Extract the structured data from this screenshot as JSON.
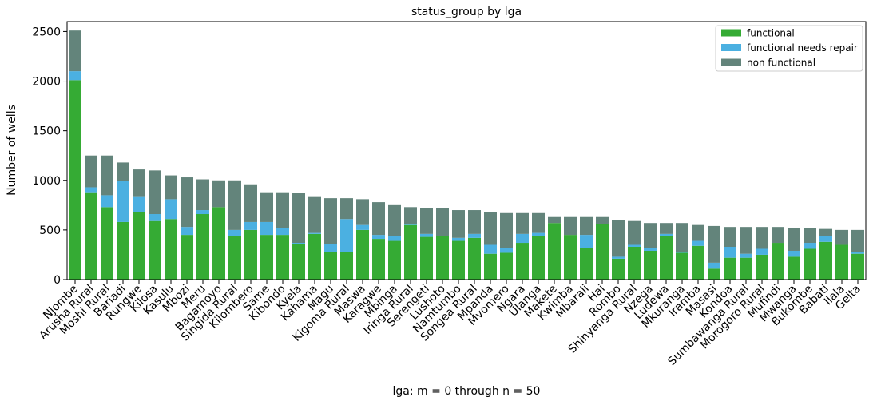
{
  "chart_data": {
    "type": "bar",
    "stacked": true,
    "title": "status_group by lga",
    "xlabel": "lga: m = 0 through n = 50",
    "ylabel": "Number of wells",
    "ylim": [
      0,
      2600
    ],
    "yticks": [
      0,
      500,
      1000,
      1500,
      2000,
      2500
    ],
    "grid": false,
    "legend_position": "top-right",
    "categories": [
      "Njombe",
      "Arusha Rural",
      "Moshi Rural",
      "Bariadi",
      "Rungwe",
      "Kilosa",
      "Kasulu",
      "Mbozi",
      "Meru",
      "Bagamoyo",
      "Singida Rural",
      "Kilombero",
      "Same",
      "Kibondo",
      "Kyela",
      "Kahama",
      "Magu",
      "Kigoma Rural",
      "Maswa",
      "Karagwe",
      "Mbinga",
      "Iringa Rural",
      "Serengeti",
      "Lushoto",
      "Namtumbo",
      "Songea Rural",
      "Mpanda",
      "Mvomero",
      "Ngara",
      "Ulanga",
      "Makete",
      "Kwimba",
      "Mbarali",
      "Hai",
      "Rombo",
      "Shinyanga Rural",
      "Nzega",
      "Ludewa",
      "Mkuranga",
      "Iramba",
      "Masasi",
      "Kondoa",
      "Sumbawanga Rural",
      "Morogoro Rural",
      "Mufindi",
      "Mwanga",
      "Bukombe",
      "Babati",
      "Ilala",
      "Geita"
    ],
    "series": [
      {
        "name": "functional",
        "color": "#35ab34",
        "values": [
          2010,
          880,
          730,
          580,
          680,
          590,
          610,
          450,
          660,
          730,
          440,
          500,
          450,
          450,
          360,
          460,
          280,
          280,
          500,
          410,
          390,
          550,
          430,
          440,
          390,
          420,
          260,
          270,
          370,
          440,
          570,
          450,
          320,
          560,
          210,
          330,
          290,
          440,
          270,
          340,
          110,
          220,
          220,
          250,
          370,
          230,
          310,
          380,
          350,
          260
        ]
      },
      {
        "name": "functional needs repair",
        "color": "#4bb0e1",
        "values": [
          90,
          50,
          120,
          410,
          160,
          70,
          200,
          80,
          40,
          0,
          60,
          80,
          130,
          70,
          10,
          10,
          80,
          330,
          50,
          40,
          50,
          10,
          30,
          0,
          30,
          40,
          90,
          50,
          90,
          30,
          0,
          0,
          130,
          0,
          20,
          20,
          30,
          20,
          10,
          50,
          60,
          110,
          40,
          60,
          0,
          60,
          60,
          60,
          0,
          20
        ]
      },
      {
        "name": "non functional",
        "color": "#63847b",
        "values": [
          410,
          320,
          400,
          190,
          270,
          440,
          240,
          500,
          310,
          270,
          500,
          380,
          300,
          360,
          500,
          370,
          460,
          210,
          260,
          330,
          310,
          170,
          260,
          280,
          280,
          240,
          330,
          350,
          210,
          200,
          60,
          180,
          180,
          70,
          370,
          240,
          250,
          110,
          290,
          160,
          370,
          200,
          270,
          220,
          160,
          230,
          150,
          70,
          150,
          220
        ]
      }
    ]
  }
}
